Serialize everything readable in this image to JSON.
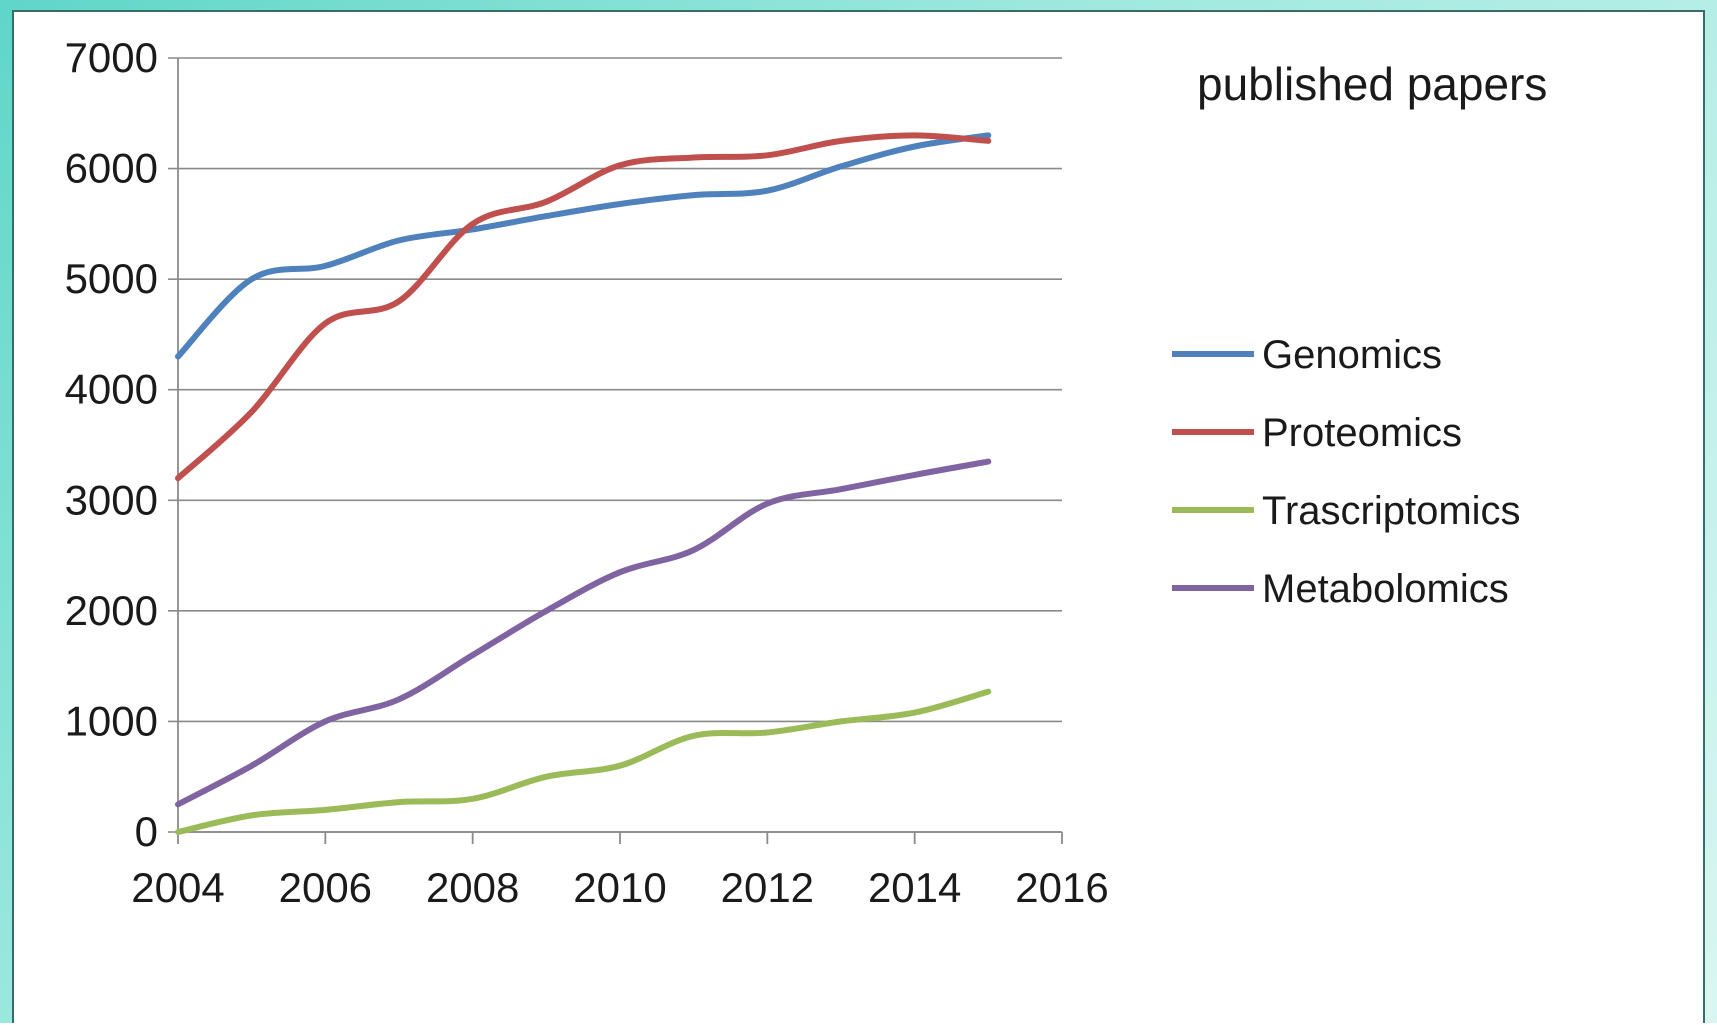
{
  "chart_data": {
    "type": "line",
    "title": "published papers",
    "xlabel": "",
    "ylabel": "",
    "xlim": [
      2004,
      2016
    ],
    "ylim": [
      0,
      7000
    ],
    "xticks": [
      "2004",
      "2006",
      "2008",
      "2010",
      "2012",
      "2014",
      "2016"
    ],
    "yticks": [
      "0",
      "1000",
      "2000",
      "3000",
      "4000",
      "5000",
      "6000",
      "7000"
    ],
    "grid": "horizontal",
    "legend_position": "right",
    "x": [
      2004,
      2005,
      2006,
      2007,
      2008,
      2009,
      2010,
      2011,
      2012,
      2013,
      2014,
      2015
    ],
    "series": [
      {
        "name": "Genomics",
        "color": "#4f81bd",
        "values": [
          4300,
          5000,
          5120,
          5350,
          5450,
          5570,
          5680,
          5760,
          5800,
          6020,
          6200,
          6300
        ]
      },
      {
        "name": "Proteomics",
        "color": "#c0504d",
        "values": [
          3200,
          3800,
          4600,
          4800,
          5500,
          5700,
          6030,
          6100,
          6120,
          6250,
          6300,
          6250
        ]
      },
      {
        "name": "Trascriptomics",
        "color": "#9bbb59",
        "values": [
          0,
          150,
          200,
          270,
          300,
          500,
          600,
          870,
          900,
          1000,
          1080,
          1270
        ]
      },
      {
        "name": "Metabolomics",
        "color": "#8064a2",
        "values": [
          250,
          600,
          1000,
          1200,
          1600,
          2000,
          2350,
          2550,
          2970,
          3100,
          3230,
          3350
        ]
      }
    ]
  }
}
